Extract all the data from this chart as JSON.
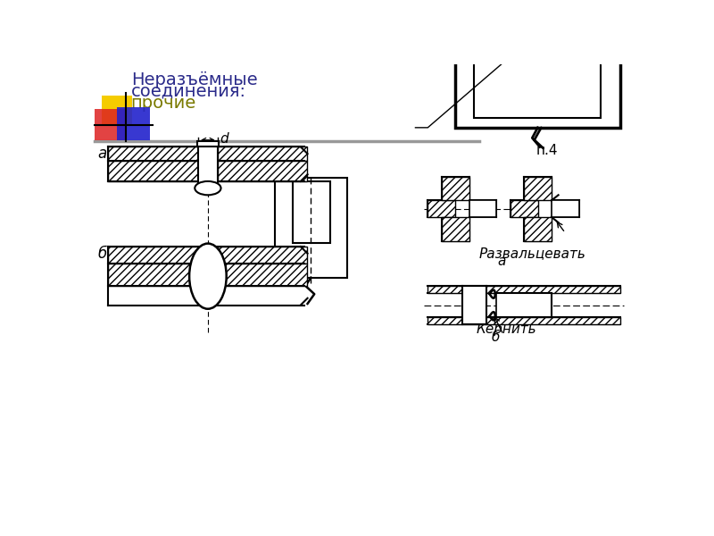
{
  "bg_color": "#ffffff",
  "title_line1": "Неразъёмные",
  "title_line2": "соединения:",
  "title_line3": "прочие",
  "title_color1": "#2b2b8a",
  "title_color2": "#7a7a00",
  "label_a": "а",
  "label_b": "б",
  "label_d": "d",
  "label_p4": "п.4",
  "label_razvalt": "Развальцевать",
  "label_kernit": "Кернить",
  "hatch_pattern": "////",
  "line_color": "#000000",
  "gray_line_color": "#999999"
}
